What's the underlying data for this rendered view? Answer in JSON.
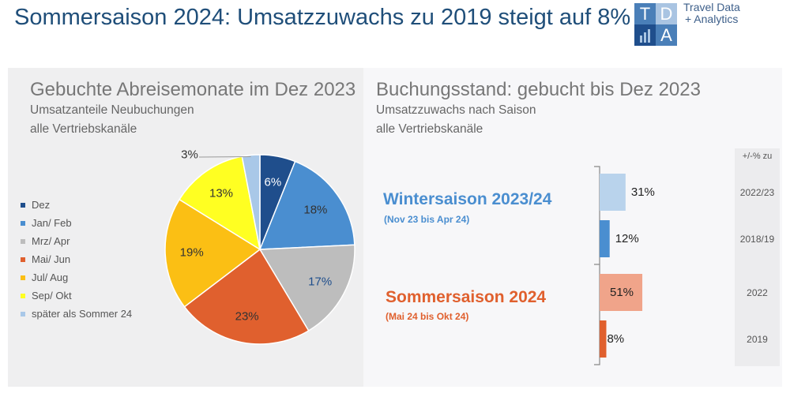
{
  "title": "Sommersaison 2024: Umsatzzuwachs zu 2019 steigt auf 8%",
  "logo": {
    "letters": [
      "T",
      "D",
      "A"
    ],
    "text1": "Travel Data",
    "text2": "+ Analytics"
  },
  "chart_data": [
    {
      "type": "pie",
      "title": "Gebuchte Abreisemonate im Dez 2023",
      "subtitle1": "Umsatzanteile Neubuchungen",
      "subtitle2": "alle Vertriebskanäle",
      "legend_position": "left",
      "slices": [
        {
          "name": "Dez",
          "value": 6,
          "label": "6%",
          "color": "#1f4e8c"
        },
        {
          "name": "Jan/ Feb",
          "value": 18,
          "label": "18%",
          "color": "#4a8ed0"
        },
        {
          "name": "Mrz/ Apr",
          "value": 17,
          "label": "17%",
          "color": "#bdbdbd"
        },
        {
          "name": "Mai/ Jun",
          "value": 23,
          "label": "23%",
          "color": "#e0602e"
        },
        {
          "name": "Jul/ Aug",
          "value": 19,
          "label": "19%",
          "color": "#fbbf14"
        },
        {
          "name": "Sep/ Okt",
          "value": 13,
          "label": "13%",
          "color": "#ffff22"
        },
        {
          "name": "später als Sommer 24",
          "value": 3,
          "label": "3%",
          "color": "#a9c8e8"
        }
      ]
    },
    {
      "type": "bar",
      "orientation": "horizontal",
      "title": "Buchungsstand: gebucht bis Dez 2023",
      "subtitle1": "Umsatzzuwachs nach Saison",
      "subtitle2": "alle Vertriebskanäle",
      "column_header": "+/-% zu",
      "groups": [
        {
          "name": "Wintersaison 2023/24",
          "period": "(Nov 23 bis Apr 24)",
          "color": "#4a8ed0",
          "bars": [
            {
              "compare": "2022/23",
              "value": 31,
              "label": "31%",
              "color": "#b9d3ec"
            },
            {
              "compare": "2018/19",
              "value": 12,
              "label": "12%",
              "color": "#4a8ed0"
            }
          ]
        },
        {
          "name": "Sommersaison 2024",
          "period": "(Mai 24 bis Okt 24)",
          "color": "#e0602e",
          "bars": [
            {
              "compare": "2022",
              "value": 51,
              "label": "51%",
              "color": "#f0a48a"
            },
            {
              "compare": "2019",
              "value": 8,
              "label": "8%",
              "color": "#e0602e"
            }
          ]
        }
      ]
    }
  ]
}
